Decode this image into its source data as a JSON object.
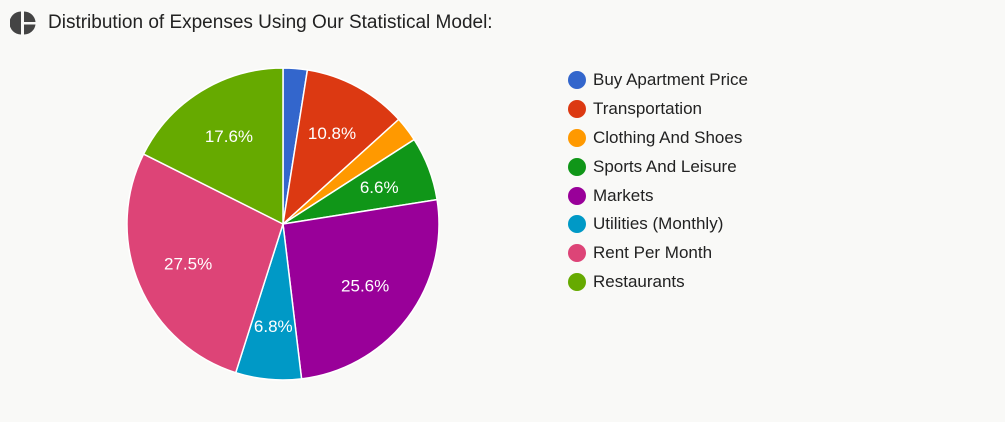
{
  "header": {
    "title": "Distribution of Expenses Using Our Statistical Model:",
    "icon": "pie-chart-icon"
  },
  "chart_data": {
    "type": "pie",
    "title": "Distribution of Expenses Using Our Statistical Model:",
    "categories": [
      "Buy Apartment Price",
      "Transportation",
      "Clothing And Shoes",
      "Sports And Leisure",
      "Markets",
      "Utilities (Monthly)",
      "Rent Per Month",
      "Restaurants"
    ],
    "values": [
      2.5,
      10.8,
      2.6,
      6.6,
      25.6,
      6.8,
      27.5,
      17.6
    ],
    "labels": [
      "",
      "10.8%",
      "",
      "6.6%",
      "25.6%",
      "6.8%",
      "27.5%",
      "17.6%"
    ],
    "colors": [
      "#3366cc",
      "#dc3912",
      "#ff9900",
      "#109618",
      "#990099",
      "#0099c6",
      "#dd4477",
      "#66aa00"
    ],
    "legend_position": "right",
    "start_angle": "top, clockwise"
  }
}
